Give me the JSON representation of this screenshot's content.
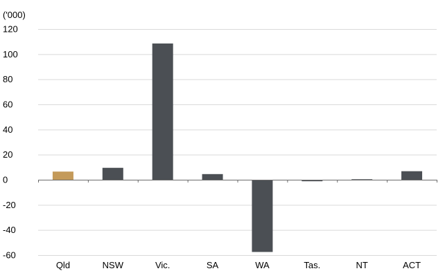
{
  "chart_data": {
    "type": "bar",
    "title": "",
    "xlabel": "",
    "ylabel": "",
    "unit_label": "('000)",
    "categories": [
      "Qld",
      "NSW",
      "Vic.",
      "SA",
      "WA",
      "Tas.",
      "NT",
      "ACT"
    ],
    "values": [
      6.5,
      9.5,
      108.5,
      4.5,
      -57.5,
      -1.2,
      0.4,
      6.8
    ],
    "highlight_category": "Qld",
    "ylim": [
      -60,
      120
    ],
    "yticks": [
      -60,
      -40,
      -20,
      0,
      20,
      40,
      60,
      80,
      100,
      120
    ],
    "grid": true,
    "legend": "none"
  },
  "colors": {
    "bar_default": "#4b4f54",
    "bar_highlight": "#c49a5a",
    "grid": "#d9d9d9",
    "axis": "#6b6b6b",
    "text": "#000000"
  }
}
